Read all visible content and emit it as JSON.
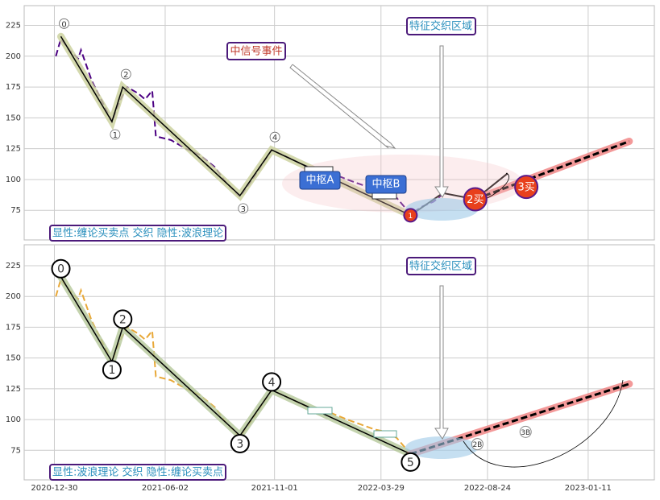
{
  "chart_data": [
    {
      "type": "line",
      "xlim": [
        "2020-11-18",
        "2023-04-13"
      ],
      "xticks": [
        "2020-12-30",
        "2021-06-02",
        "2021-11-01",
        "2022-03-29",
        "2022-08-24",
        "2023-01-11"
      ],
      "ylim": [
        51,
        241
      ],
      "yticks": [
        75,
        100,
        125,
        150,
        175,
        200,
        225
      ],
      "grid": true,
      "annotations": [
        "中信号事件",
        "特征交织区域",
        "显性:缠论买卖点 交织 隐性:波浪理论",
        "中枢A",
        "中枢B"
      ],
      "series": [
        {
          "color": "#4b0082",
          "style": "dashed",
          "x": [
            "2021-01-01",
            "2021-01-08",
            "2021-01-20",
            "2021-02-01",
            "2021-02-05",
            "2021-02-20",
            "2021-03-05",
            "2021-03-20",
            "2021-04-01",
            "2021-04-10",
            "2021-04-25",
            "2021-05-05",
            "2021-05-15",
            "2021-05-20",
            "2021-06-10",
            "2021-07-01",
            "2021-07-20",
            "2021-08-10",
            "2021-08-25",
            "2021-09-14",
            "2021-10-01",
            "2021-10-28",
            "2021-11-20",
            "2021-12-10",
            "2022-01-01",
            "2022-01-20",
            "2022-02-10",
            "2022-03-01",
            "2022-03-20",
            "2022-04-05",
            "2022-04-20",
            "2022-05-09",
            "2022-05-25",
            "2022-06-10",
            "2022-06-23"
          ],
          "values": [
            200,
            214,
            205,
            198,
            205,
            180,
            165,
            147,
            165,
            175,
            170,
            165,
            172,
            135,
            132,
            125,
            120,
            110,
            98,
            86,
            100,
            124,
            118,
            112,
            108,
            105,
            100,
            96,
            92,
            90,
            85,
            72,
            78,
            82,
            88
          ]
        },
        {
          "color": "#000000",
          "style": "solid",
          "halo": "#c9cf9a",
          "x": [
            "2021-01-08",
            "2021-03-20",
            "2021-04-04",
            "2021-09-14",
            "2021-10-28",
            "2022-05-09"
          ],
          "values": [
            216,
            147,
            175,
            87,
            124,
            71
          ],
          "labels": [
            "0",
            "1",
            "2",
            "3",
            "4",
            null
          ]
        },
        {
          "color": "#000000",
          "style": "solid",
          "x": [
            "2022-05-09",
            "2022-06-23",
            "2022-08-07",
            "2022-09-21"
          ],
          "values": [
            71,
            89,
            84,
            105
          ]
        },
        {
          "color": "#000000",
          "style": "dashed",
          "halo": "#f08080",
          "x": [
            "2022-08-07",
            "2023-03-09"
          ],
          "values": [
            84,
            131
          ]
        }
      ],
      "points": {
        "color": "#e8401c",
        "x": [
          "2022-05-09",
          "2022-08-07",
          "2022-10-17"
        ],
        "values": [
          71,
          84,
          94
        ],
        "labels": [
          "1",
          "2买",
          "3买"
        ]
      }
    },
    {
      "type": "line",
      "xlim": [
        "2020-11-18",
        "2023-04-13"
      ],
      "xticks": [
        "2020-12-30",
        "2021-06-02",
        "2021-11-01",
        "2022-03-29",
        "2022-08-24",
        "2023-01-11"
      ],
      "ylim": [
        51,
        242
      ],
      "yticks": [
        75,
        100,
        125,
        150,
        175,
        200,
        225
      ],
      "grid": true,
      "annotations": [
        "特征交织区域",
        "显性:波浪理论 交织 隐性:缠论买卖点"
      ],
      "series": [
        {
          "color": "#e8a838",
          "style": "dashed",
          "x": [
            "2021-01-01",
            "2021-01-08",
            "2021-01-20",
            "2021-02-01",
            "2021-02-05",
            "2021-02-20",
            "2021-03-05",
            "2021-03-20",
            "2021-04-01",
            "2021-04-10",
            "2021-04-25",
            "2021-05-05",
            "2021-05-15",
            "2021-05-20",
            "2021-06-10",
            "2021-07-01",
            "2021-07-20",
            "2021-08-10",
            "2021-08-25",
            "2021-09-14",
            "2021-10-01",
            "2021-10-28",
            "2021-11-20",
            "2021-12-10",
            "2022-01-01",
            "2022-01-20",
            "2022-02-10",
            "2022-03-01",
            "2022-03-20",
            "2022-04-05",
            "2022-04-20",
            "2022-05-09"
          ],
          "values": [
            200,
            214,
            205,
            198,
            205,
            180,
            165,
            147,
            165,
            175,
            170,
            165,
            172,
            135,
            132,
            125,
            120,
            110,
            98,
            86,
            100,
            124,
            118,
            112,
            108,
            105,
            100,
            96,
            92,
            90,
            85,
            72
          ]
        },
        {
          "color": "#000000",
          "style": "solid",
          "halo": "#b5c89a",
          "x": [
            "2021-01-08",
            "2021-03-20",
            "2021-04-04",
            "2021-09-14",
            "2021-10-28",
            "2022-05-09"
          ],
          "values": [
            216,
            147,
            175,
            87,
            124,
            72
          ],
          "labels": [
            "0",
            "1",
            "2",
            "3",
            "4",
            "5"
          ]
        },
        {
          "color": "#000000",
          "style": "dashed",
          "halo": "#f08080",
          "x": [
            "2022-05-09",
            "2023-03-09"
          ],
          "values": [
            72,
            129
          ]
        }
      ],
      "points": {
        "color": "#333333",
        "x": [
          "2022-08-10",
          "2022-10-16"
        ],
        "values": [
          80,
          90
        ],
        "labels": [
          "2B",
          "3B"
        ]
      }
    }
  ]
}
